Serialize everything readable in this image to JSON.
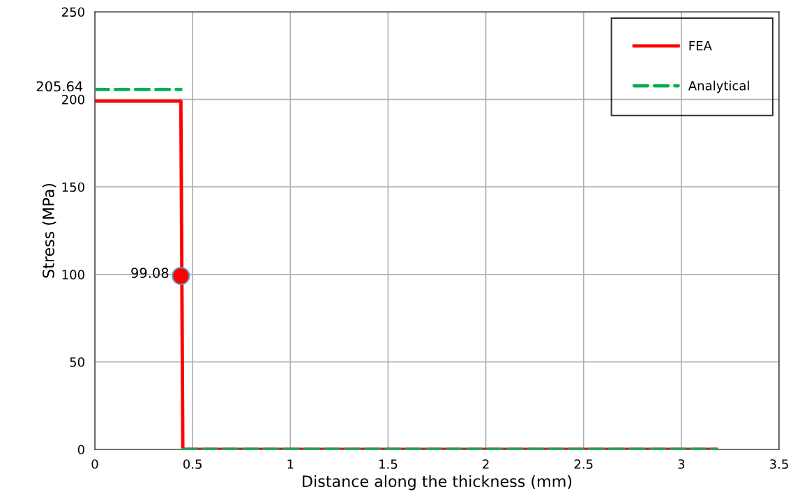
{
  "chart_data": {
    "type": "line",
    "xlabel": "Distance along the thickness (mm)",
    "ylabel": "Stress (MPa)",
    "xlim": [
      0,
      3.5
    ],
    "xticks": [
      0,
      0.5,
      1,
      1.5,
      2,
      2.5,
      3,
      3.5
    ],
    "ylim": [
      0,
      250
    ],
    "yticks": [
      0,
      50,
      100,
      150,
      200,
      250
    ],
    "grid": true,
    "legend": "top right",
    "series": [
      {
        "name": "FEA",
        "color": "#ff0000",
        "line_style": "solid",
        "x": [
          0,
          0.44,
          0.45,
          3.18
        ],
        "values": [
          199,
          199,
          0,
          0
        ]
      },
      {
        "name": "Analytical",
        "color": "#00b050",
        "line_style": "dashed",
        "x": [
          0,
          0.44
        ],
        "values": [
          205.64,
          205.64
        ],
        "value_labels": [
          "205.64",
          null
        ]
      },
      {
        "color": "#00b050",
        "line_style": "dashed",
        "x": [
          0.45,
          3.18
        ],
        "values": [
          0,
          0
        ]
      },
      {
        "type": "scatter",
        "color": "#ff0000",
        "marker": "circle",
        "x": [
          0.44
        ],
        "values": [
          99.08
        ],
        "value_labels": [
          "99.08"
        ]
      }
    ]
  }
}
